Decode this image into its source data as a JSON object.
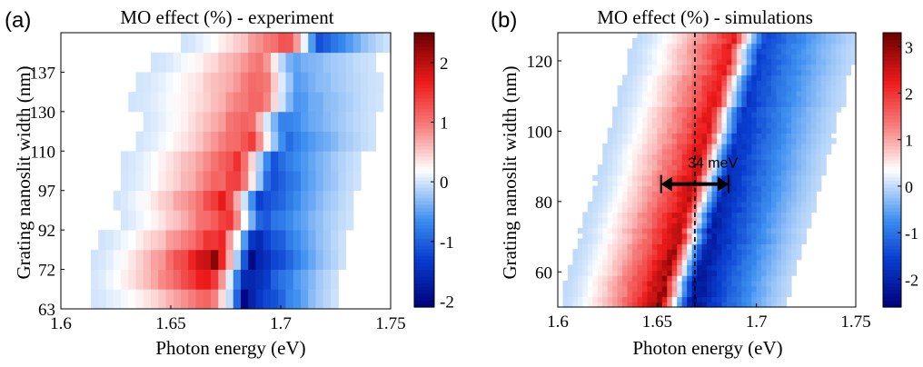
{
  "colormap": {
    "stops": [
      {
        "t": 0.0,
        "color": "#00007a"
      },
      {
        "t": 0.18,
        "color": "#0a3fd0"
      },
      {
        "t": 0.32,
        "color": "#3d8ff0"
      },
      {
        "t": 0.5,
        "color": "#ffffff"
      },
      {
        "t": 0.66,
        "color": "#f5807e"
      },
      {
        "t": 0.82,
        "color": "#ee1b1b"
      },
      {
        "t": 1.0,
        "color": "#6b0000"
      }
    ]
  },
  "chart_data": [
    {
      "type": "heatmap",
      "panel_label": "(a)",
      "title": "MO effect (%) - experiment",
      "xlabel": "Photon energy (eV)",
      "ylabel": "Grating nanoslit width (nm)",
      "xlim": [
        1.6,
        1.75
      ],
      "x_ticks": [
        "1.6",
        "1.65",
        "1.7",
        "1.75"
      ],
      "y_tick_labels": [
        "63",
        "72",
        "92",
        "97",
        "110",
        "130",
        "137"
      ],
      "colorbar": {
        "range": [
          -2.1,
          2.5
        ],
        "ticks": [
          "-2",
          "-1",
          "0",
          "1",
          "2"
        ]
      },
      "rows": [
        {
          "width": "63",
          "start": 1.613,
          "zero": 1.6765,
          "end": 1.726,
          "max_pos": 1.2,
          "max_neg": -1.9
        },
        {
          "width": "",
          "start": 1.612,
          "zero": 1.677,
          "end": 1.727,
          "max_pos": 1.9,
          "max_neg": -1.8
        },
        {
          "width": "72",
          "start": 1.615,
          "zero": 1.6795,
          "end": 1.73,
          "max_pos": 2.2,
          "max_neg": -1.9
        },
        {
          "width": "",
          "start": 1.618,
          "zero": 1.681,
          "end": 1.73,
          "max_pos": 1.7,
          "max_neg": -1.6
        },
        {
          "width": "92",
          "start": 1.626,
          "zero": 1.6845,
          "end": 1.733,
          "max_pos": 1.6,
          "max_neg": -1.1
        },
        {
          "width": "",
          "start": 1.624,
          "zero": 1.6835,
          "end": 1.734,
          "max_pos": 1.7,
          "max_neg": -1.3
        },
        {
          "width": "97",
          "start": 1.627,
          "zero": 1.689,
          "end": 1.736,
          "max_pos": 1.5,
          "max_neg": -1.2
        },
        {
          "width": "",
          "start": 1.628,
          "zero": 1.6895,
          "end": 1.737,
          "max_pos": 1.5,
          "max_neg": -1.1
        },
        {
          "width": "110",
          "start": 1.633,
          "zero": 1.6955,
          "end": 1.744,
          "max_pos": 1.4,
          "max_neg": -0.9
        },
        {
          "width": "",
          "start": 1.636,
          "zero": 1.694,
          "end": 1.743,
          "max_pos": 1.3,
          "max_neg": -0.8
        },
        {
          "width": "130",
          "start": 1.632,
          "zero": 1.7005,
          "end": 1.745,
          "max_pos": 1.2,
          "max_neg": -0.6
        },
        {
          "width": "",
          "start": 1.634,
          "zero": 1.701,
          "end": 1.746,
          "max_pos": 1.2,
          "max_neg": -0.5
        },
        {
          "width": "137",
          "start": 1.642,
          "zero": 1.6995,
          "end": 1.744,
          "max_pos": 1.1,
          "max_neg": -0.5
        },
        {
          "width": "",
          "start": 1.655,
          "zero": 1.7115,
          "end": 1.75,
          "max_pos": 1.4,
          "max_neg": -1.2
        }
      ]
    },
    {
      "type": "heatmap",
      "panel_label": "(b)",
      "title": "MO effect (%) - simulations",
      "xlabel": "Photon energy (eV)",
      "ylabel": "Grating  nanoslit width (nm)",
      "xlim": [
        1.6,
        1.75
      ],
      "ylim": [
        50,
        128
      ],
      "x_ticks": [
        "1.6",
        "1.65",
        "1.7",
        "1.75"
      ],
      "y_ticks": [
        60,
        80,
        100,
        120
      ],
      "colorbar": {
        "range": [
          -2.6,
          3.3
        ],
        "ticks": [
          "-2",
          "-1",
          "0",
          "1",
          "2",
          "3"
        ]
      },
      "zero_line": {
        "y_values": [
          50,
          128
        ],
        "x_values": [
          1.659,
          1.697
        ]
      },
      "max_pos": 3.0,
      "max_neg": -2.4,
      "peak_offset": 0.012,
      "dashed_line_x": 1.669,
      "annotation": {
        "text": "34 meV",
        "x_start": 1.652,
        "x_end": 1.686,
        "y": 86
      }
    }
  ]
}
